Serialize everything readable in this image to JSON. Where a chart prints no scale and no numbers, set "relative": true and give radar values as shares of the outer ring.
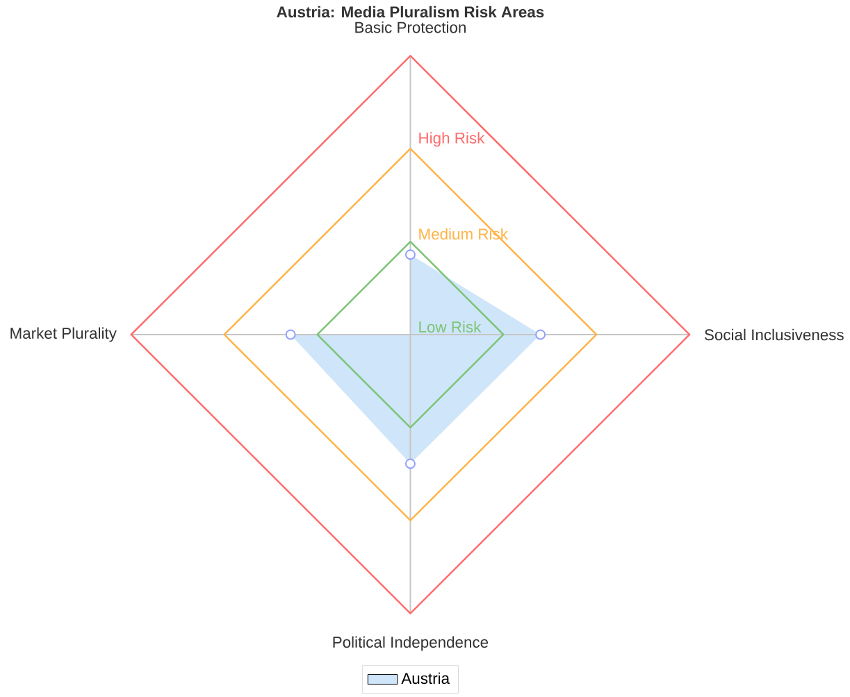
{
  "chart_data": {
    "type": "radar",
    "title": "Austria: Media Pluralism Risk Areas",
    "categories": [
      "Basic Protection",
      "Social Inclusiveness",
      "Political Independence",
      "Market Plurality"
    ],
    "relative": true,
    "series": [
      {
        "name": "Austria",
        "color": "#cfe5f9",
        "values": [
          0.287,
          0.466,
          0.463,
          0.429
        ]
      }
    ],
    "annotations": [
      "Low Risk",
      "Medium Risk",
      "High Risk"
    ],
    "grid": true,
    "marker": "circle",
    "legend": "bottom"
  }
}
